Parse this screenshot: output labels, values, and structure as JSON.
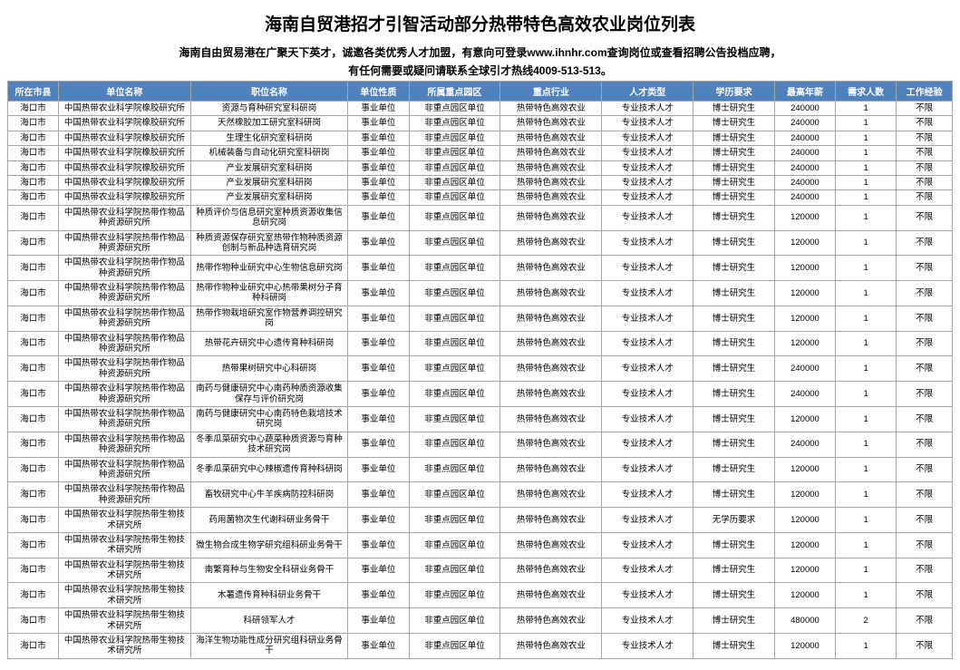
{
  "title": "海南自贸港招才引智活动部分热带特色高效农业岗位列表",
  "subtitle1": "海南自由贸易港在广聚天下英才，诚邀各类优秀人才加盟，有意向可登录www.ihnhr.com查询岗位或查看招聘公告投档应聘，",
  "subtitle2": "有任何需要或疑问请联系全球引才热线4009-513-513。",
  "headers": [
    "所在市县",
    "单位名称",
    "职位名称",
    "单位性质",
    "所属重点园区",
    "重点行业",
    "人才类型",
    "学历要求",
    "最高年薪",
    "需求人数",
    "工作经验"
  ],
  "rows": [
    [
      "海口市",
      "中国热带农业科学院橡胶研究所",
      "资源与育种研究室科研岗",
      "事业单位",
      "非重点园区单位",
      "热带特色高效农业",
      "专业技术人才",
      "博士研究生",
      "240000",
      "1",
      "不限"
    ],
    [
      "海口市",
      "中国热带农业科学院橡胶研究所",
      "天然橡胶加工研究室科研岗",
      "事业单位",
      "非重点园区单位",
      "热带特色高效农业",
      "专业技术人才",
      "博士研究生",
      "240000",
      "1",
      "不限"
    ],
    [
      "海口市",
      "中国热带农业科学院橡胶研究所",
      "生理生化研究室科研岗",
      "事业单位",
      "非重点园区单位",
      "热带特色高效农业",
      "专业技术人才",
      "博士研究生",
      "240000",
      "1",
      "不限"
    ],
    [
      "海口市",
      "中国热带农业科学院橡胶研究所",
      "机械装备与自动化研究室科研岗",
      "事业单位",
      "非重点园区单位",
      "热带特色高效农业",
      "专业技术人才",
      "博士研究生",
      "240000",
      "1",
      "不限"
    ],
    [
      "海口市",
      "中国热带农业科学院橡胶研究所",
      "产业发展研究室科研岗",
      "事业单位",
      "非重点园区单位",
      "热带特色高效农业",
      "专业技术人才",
      "博士研究生",
      "240000",
      "1",
      "不限"
    ],
    [
      "海口市",
      "中国热带农业科学院橡胶研究所",
      "产业发展研究室科研岗",
      "事业单位",
      "非重点园区单位",
      "热带特色高效农业",
      "专业技术人才",
      "博士研究生",
      "240000",
      "1",
      "不限"
    ],
    [
      "海口市",
      "中国热带农业科学院橡胶研究所",
      "产业发展研究室科研岗",
      "事业单位",
      "非重点园区单位",
      "热带特色高效农业",
      "专业技术人才",
      "博士研究生",
      "240000",
      "1",
      "不限"
    ],
    [
      "海口市",
      "中国热带农业科学院热带作物品种资源研究所",
      "种质评价与信息研究室种质资源收集信息研究岗",
      "事业单位",
      "非重点园区单位",
      "热带特色高效农业",
      "专业技术人才",
      "博士研究生",
      "120000",
      "1",
      "不限"
    ],
    [
      "海口市",
      "中国热带农业科学院热带作物品种资源研究所",
      "种质资源保存研究室热带作物种质资源创制与新品种选育研究岗",
      "事业单位",
      "非重点园区单位",
      "热带特色高效农业",
      "专业技术人才",
      "博士研究生",
      "120000",
      "1",
      "不限"
    ],
    [
      "海口市",
      "中国热带农业科学院热带作物品种资源研究所",
      "热带作物种业研究中心生物信息研究岗",
      "事业单位",
      "非重点园区单位",
      "热带特色高效农业",
      "专业技术人才",
      "博士研究生",
      "120000",
      "1",
      "不限"
    ],
    [
      "海口市",
      "中国热带农业科学院热带作物品种资源研究所",
      "热带作物种业研究中心热带果树分子育种科研岗",
      "事业单位",
      "非重点园区单位",
      "热带特色高效农业",
      "专业技术人才",
      "博士研究生",
      "120000",
      "1",
      "不限"
    ],
    [
      "海口市",
      "中国热带农业科学院热带作物品种资源研究所",
      "热带作物栽培研究室作物营养调控研究岗",
      "事业单位",
      "非重点园区单位",
      "热带特色高效农业",
      "专业技术人才",
      "博士研究生",
      "120000",
      "1",
      "不限"
    ],
    [
      "海口市",
      "中国热带农业科学院热带作物品种资源研究所",
      "热带花卉研究中心遗传育种科研岗",
      "事业单位",
      "非重点园区单位",
      "热带特色高效农业",
      "专业技术人才",
      "博士研究生",
      "120000",
      "1",
      "不限"
    ],
    [
      "海口市",
      "中国热带农业科学院热带作物品种资源研究所",
      "热带果树研究中心科研岗",
      "事业单位",
      "非重点园区单位",
      "热带特色高效农业",
      "专业技术人才",
      "博士研究生",
      "240000",
      "1",
      "不限"
    ],
    [
      "海口市",
      "中国热带农业科学院热带作物品种资源研究所",
      "南药与健康研究中心南药种质资源收集保存与评价研究岗",
      "事业单位",
      "非重点园区单位",
      "热带特色高效农业",
      "专业技术人才",
      "博士研究生",
      "240000",
      "1",
      "不限"
    ],
    [
      "海口市",
      "中国热带农业科学院热带作物品种资源研究所",
      "南药与健康研究中心南药特色栽培技术研究岗",
      "事业单位",
      "非重点园区单位",
      "热带特色高效农业",
      "专业技术人才",
      "博士研究生",
      "120000",
      "1",
      "不限"
    ],
    [
      "海口市",
      "中国热带农业科学院热带作物品种资源研究所",
      "冬季瓜菜研究中心蔬菜种质资源与育种技术研究岗",
      "事业单位",
      "非重点园区单位",
      "热带特色高效农业",
      "专业技术人才",
      "博士研究生",
      "240000",
      "1",
      "不限"
    ],
    [
      "海口市",
      "中国热带农业科学院热带作物品种资源研究所",
      "冬季瓜菜研究中心辣椒遗传育种科研岗",
      "事业单位",
      "非重点园区单位",
      "热带特色高效农业",
      "专业技术人才",
      "博士研究生",
      "120000",
      "1",
      "不限"
    ],
    [
      "海口市",
      "中国热带农业科学院热带作物品种资源研究所",
      "畜牧研究中心牛羊疾病防控科研岗",
      "事业单位",
      "非重点园区单位",
      "热带特色高效农业",
      "专业技术人才",
      "博士研究生",
      "120000",
      "1",
      "不限"
    ],
    [
      "海口市",
      "中国热带农业科学院热带生物技术研究所",
      "药用菌物次生代谢科研业务骨干",
      "事业单位",
      "非重点园区单位",
      "热带特色高效农业",
      "专业技术人才",
      "无学历要求",
      "120000",
      "1",
      "不限"
    ],
    [
      "海口市",
      "中国热带农业科学院热带生物技术研究所",
      "微生物合成生物学研究组科研业务骨干",
      "事业单位",
      "非重点园区单位",
      "热带特色高效农业",
      "专业技术人才",
      "博士研究生",
      "120000",
      "1",
      "不限"
    ],
    [
      "海口市",
      "中国热带农业科学院热带生物技术研究所",
      "南繁育种与生物安全科研业务骨干",
      "事业单位",
      "非重点园区单位",
      "热带特色高效农业",
      "专业技术人才",
      "博士研究生",
      "120000",
      "1",
      "不限"
    ],
    [
      "海口市",
      "中国热带农业科学院热带生物技术研究所",
      "木薯遗传育种科研业务骨干",
      "事业单位",
      "非重点园区单位",
      "热带特色高效农业",
      "专业技术人才",
      "博士研究生",
      "120000",
      "1",
      "不限"
    ],
    [
      "海口市",
      "中国热带农业科学院热带生物技术研究所",
      "科研领军人才",
      "事业单位",
      "非重点园区单位",
      "热带特色高效农业",
      "专业技术人才",
      "博士研究生",
      "480000",
      "2",
      "不限"
    ],
    [
      "海口市",
      "中国热带农业科学院热带生物技术研究所",
      "海洋生物功能性成分研究组科研业务骨干",
      "事业单位",
      "非重点园区单位",
      "热带特色高效农业",
      "专业技术人才",
      "博士研究生",
      "120000",
      "1",
      "不限"
    ]
  ]
}
